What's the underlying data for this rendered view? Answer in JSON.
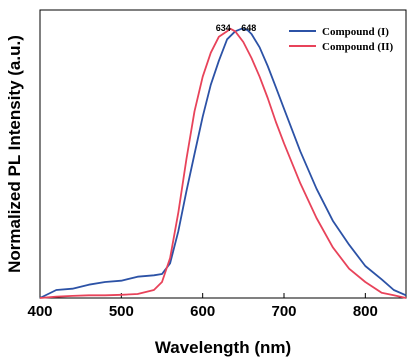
{
  "chart_data": {
    "type": "line",
    "xlabel": "Wavelength (nm)",
    "ylabel": "Normalized PL Intensity (a.u.)",
    "xlim": [
      400,
      850
    ],
    "ylim": [
      0,
      1.08
    ],
    "xticks": [
      400,
      500,
      600,
      700,
      800
    ],
    "grid": false,
    "legend_position": "top-right",
    "annotations": [
      {
        "text": "634",
        "x": 634,
        "color": "#e8435a"
      },
      {
        "text": "648",
        "x": 648,
        "color": "#2c52a6"
      }
    ],
    "series": [
      {
        "name": "Compound (I)",
        "color": "#2c52a6",
        "x": [
          400,
          420,
          440,
          460,
          480,
          500,
          520,
          540,
          550,
          560,
          570,
          580,
          590,
          600,
          610,
          620,
          630,
          640,
          648,
          655,
          660,
          670,
          680,
          690,
          700,
          720,
          740,
          760,
          780,
          800,
          820,
          835,
          850
        ],
        "y": [
          0.0,
          0.03,
          0.035,
          0.05,
          0.06,
          0.065,
          0.08,
          0.085,
          0.09,
          0.13,
          0.25,
          0.4,
          0.54,
          0.68,
          0.8,
          0.89,
          0.97,
          1.0,
          1.01,
          1.005,
          0.99,
          0.94,
          0.87,
          0.79,
          0.71,
          0.55,
          0.41,
          0.29,
          0.2,
          0.12,
          0.07,
          0.03,
          0.01
        ]
      },
      {
        "name": "Compound (II)",
        "color": "#e8435a",
        "x": [
          400,
          420,
          440,
          460,
          480,
          500,
          520,
          540,
          550,
          560,
          570,
          580,
          590,
          600,
          610,
          620,
          630,
          634,
          640,
          650,
          660,
          670,
          680,
          690,
          700,
          720,
          740,
          760,
          780,
          800,
          820,
          835,
          850
        ],
        "y": [
          0.0,
          0.005,
          0.008,
          0.01,
          0.01,
          0.012,
          0.015,
          0.03,
          0.06,
          0.15,
          0.32,
          0.52,
          0.7,
          0.83,
          0.92,
          0.98,
          1.0,
          1.01,
          1.0,
          0.96,
          0.9,
          0.83,
          0.75,
          0.66,
          0.58,
          0.43,
          0.3,
          0.19,
          0.11,
          0.06,
          0.02,
          0.01,
          0.0
        ]
      }
    ]
  }
}
